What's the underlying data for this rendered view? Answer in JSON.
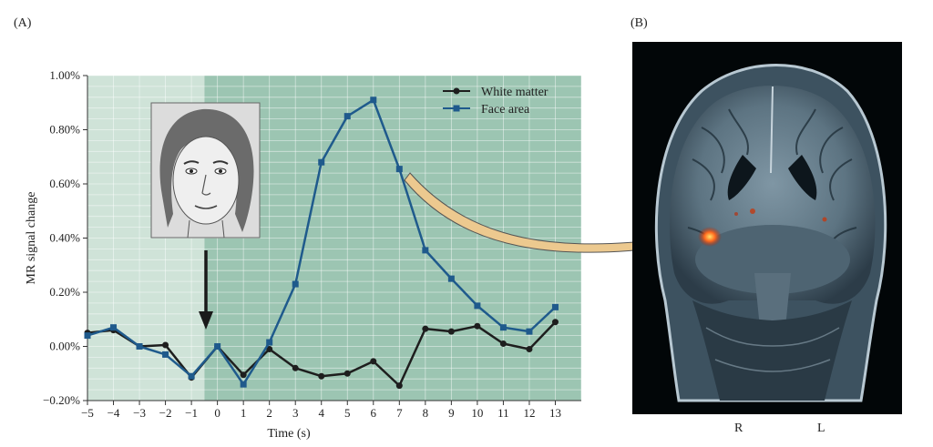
{
  "panels": {
    "a_label": "(A)",
    "b_label": "(B)"
  },
  "brain": {
    "right_label": "R",
    "left_label": "L"
  },
  "colors": {
    "pre_stimulus_bg": "#cfe3d8",
    "post_stimulus_bg": "#9cc5b2",
    "white_matter": "#1e1e1e",
    "face_area": "#1f5a8c",
    "arrow_fill": "#ecc98f",
    "activation": "#ff5a1e"
  },
  "chart_data": {
    "type": "line",
    "xlabel": "Time (s)",
    "ylabel": "MR signal change",
    "xlim": [
      -5,
      14
    ],
    "ylim": [
      -0.2,
      1.0
    ],
    "x_ticks": [
      "−5",
      "−4",
      "−3",
      "−2",
      "−1",
      "0",
      "1",
      "2",
      "3",
      "4",
      "5",
      "6",
      "7",
      "8",
      "9",
      "10",
      "11",
      "12",
      "13"
    ],
    "y_ticks": [
      "−0.20%",
      "0.00%",
      "0.20%",
      "0.40%",
      "0.60%",
      "0.80%",
      "1.00%"
    ],
    "y_tick_values": [
      -0.2,
      0.0,
      0.2,
      0.4,
      0.6,
      0.8,
      1.0
    ],
    "stimulus_onset": -0.5,
    "grid": true,
    "legend_position": "top-right",
    "x": [
      -5,
      -4,
      -3,
      -2,
      -1,
      0,
      1,
      2,
      3,
      4,
      5,
      6,
      7,
      8,
      9,
      10,
      11,
      12,
      13
    ],
    "series": [
      {
        "name": "White matter",
        "marker": "circle",
        "values": [
          0.05,
          0.06,
          0.0,
          0.005,
          -0.115,
          0.0,
          -0.105,
          -0.01,
          -0.08,
          -0.11,
          -0.1,
          -0.055,
          -0.145,
          0.065,
          0.055,
          0.075,
          0.01,
          -0.01,
          0.09
        ]
      },
      {
        "name": "Face area",
        "marker": "square",
        "values": [
          0.04,
          0.07,
          0.0,
          -0.03,
          -0.11,
          0.0,
          -0.14,
          0.015,
          0.23,
          0.68,
          0.85,
          0.91,
          0.655,
          0.355,
          0.25,
          0.15,
          0.07,
          0.055,
          0.145
        ]
      }
    ]
  }
}
